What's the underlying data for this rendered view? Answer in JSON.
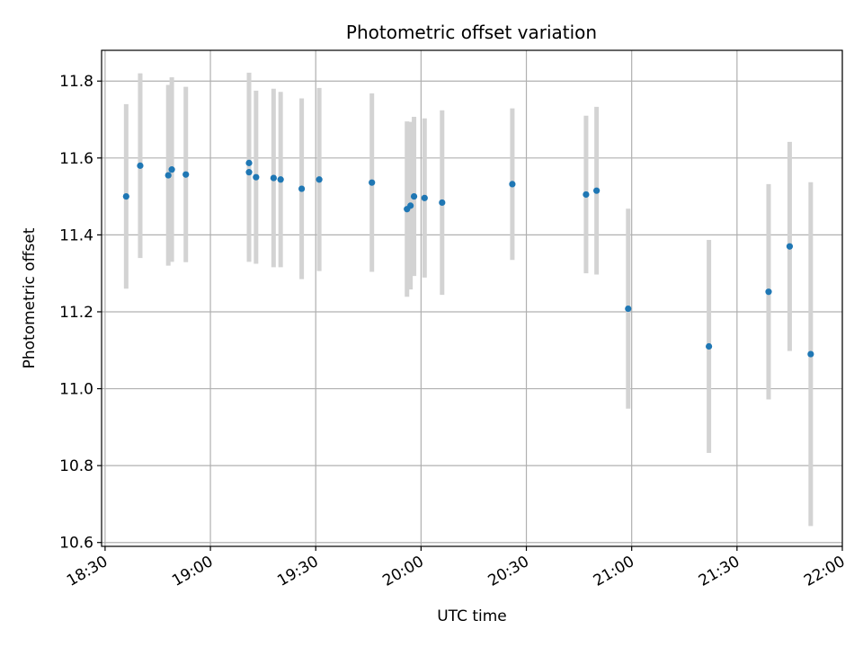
{
  "chart_data": {
    "type": "scatter",
    "title": "Photometric offset variation",
    "xlabel": "UTC time",
    "ylabel": "Photometric offset",
    "xlim": [
      "18:29",
      "22:00"
    ],
    "ylim": [
      10.59,
      11.88
    ],
    "x_ticks": [
      "18:30",
      "19:00",
      "19:30",
      "20:00",
      "20:30",
      "21:00",
      "21:30",
      "22:00"
    ],
    "y_ticks": [
      "10.6",
      "10.8",
      "11.0",
      "11.2",
      "11.4",
      "11.6",
      "11.8"
    ],
    "grid": true,
    "colors": {
      "marker": "#1f77b4",
      "errorbar": "#d3d3d3",
      "grid": "#b0b0b0"
    },
    "series": [
      {
        "points": [
          {
            "x": "18:36",
            "y": 11.5,
            "err": 0.24
          },
          {
            "x": "18:40",
            "y": 11.58,
            "err": 0.24
          },
          {
            "x": "18:48",
            "y": 11.555,
            "err": 0.235
          },
          {
            "x": "18:49",
            "y": 11.57,
            "err": 0.24
          },
          {
            "x": "18:53",
            "y": 11.557,
            "err": 0.228
          },
          {
            "x": "19:11",
            "y": 11.587,
            "err": 0.235
          },
          {
            "x": "19:11",
            "y": 11.563,
            "err": 0.233
          },
          {
            "x": "19:13",
            "y": 11.55,
            "err": 0.225
          },
          {
            "x": "19:18",
            "y": 11.548,
            "err": 0.232
          },
          {
            "x": "19:20",
            "y": 11.544,
            "err": 0.228
          },
          {
            "x": "19:26",
            "y": 11.52,
            "err": 0.235
          },
          {
            "x": "19:31",
            "y": 11.544,
            "err": 0.238
          },
          {
            "x": "19:46",
            "y": 11.536,
            "err": 0.232
          },
          {
            "x": "19:56",
            "y": 11.467,
            "err": 0.228
          },
          {
            "x": "19:57",
            "y": 11.476,
            "err": 0.218
          },
          {
            "x": "19:58",
            "y": 11.5,
            "err": 0.207
          },
          {
            "x": "20:01",
            "y": 11.496,
            "err": 0.207
          },
          {
            "x": "20:06",
            "y": 11.484,
            "err": 0.24
          },
          {
            "x": "20:26",
            "y": 11.532,
            "err": 0.197
          },
          {
            "x": "20:47",
            "y": 11.505,
            "err": 0.205
          },
          {
            "x": "20:50",
            "y": 11.515,
            "err": 0.218
          },
          {
            "x": "20:59",
            "y": 11.208,
            "err": 0.26
          },
          {
            "x": "21:22",
            "y": 11.11,
            "err": 0.277
          },
          {
            "x": "21:39",
            "y": 11.252,
            "err": 0.28
          },
          {
            "x": "21:45",
            "y": 11.37,
            "err": 0.272
          },
          {
            "x": "21:51",
            "y": 11.09,
            "err": 0.447
          }
        ]
      }
    ]
  }
}
